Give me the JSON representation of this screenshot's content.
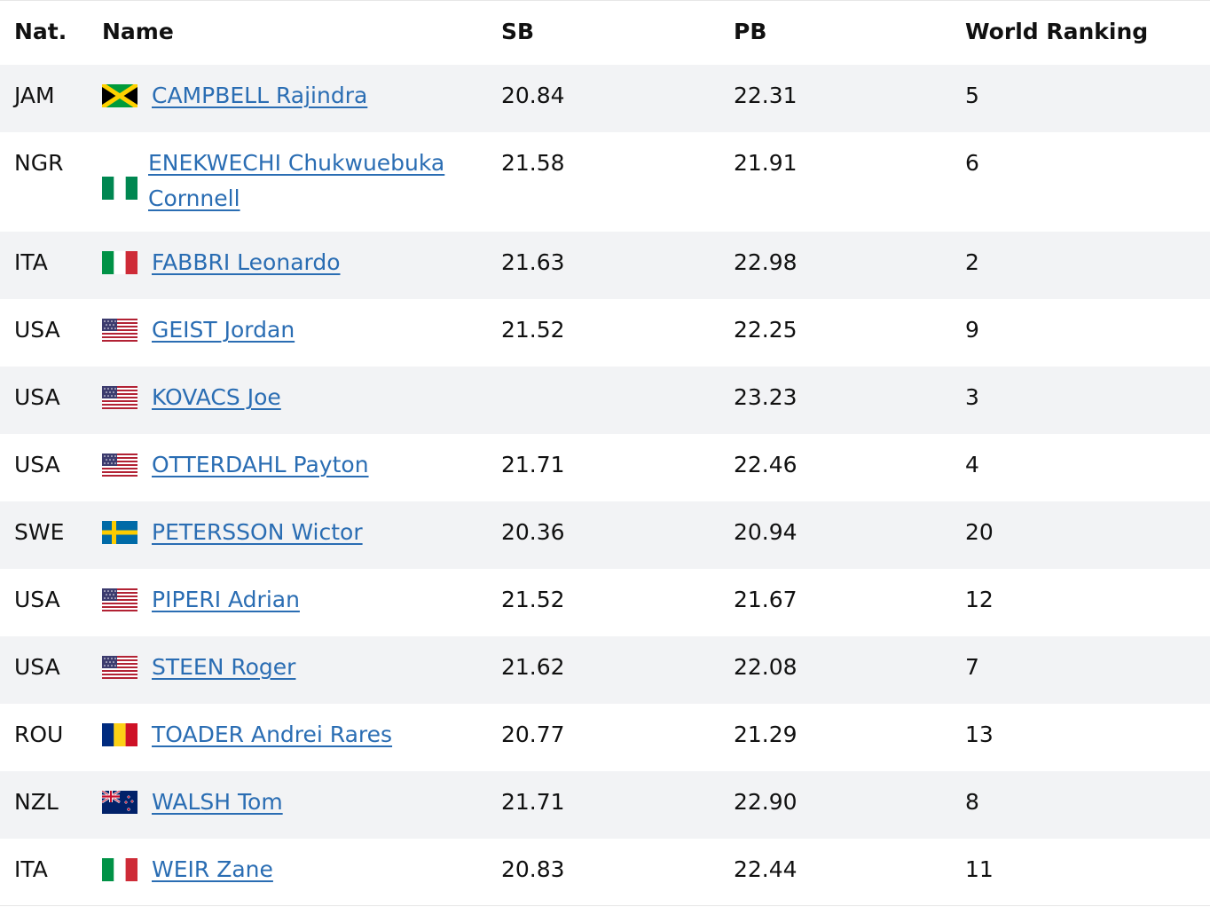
{
  "headers": {
    "nat": "Nat.",
    "name": "Name",
    "sb": "SB",
    "pb": "PB",
    "rank": "World Ranking"
  },
  "rows": [
    {
      "nat": "JAM",
      "flag": "jamaica-flag-icon",
      "name": "CAMPBELL Rajindra",
      "sb": "20.84",
      "pb": "22.31",
      "rank": "5"
    },
    {
      "nat": "NGR",
      "flag": "nigeria-flag-icon",
      "name": "ENEKWECHI Chukwuebuka Cornnell",
      "sb": "21.58",
      "pb": "21.91",
      "rank": "6"
    },
    {
      "nat": "ITA",
      "flag": "italy-flag-icon",
      "name": "FABBRI Leonardo",
      "sb": "21.63",
      "pb": "22.98",
      "rank": "2"
    },
    {
      "nat": "USA",
      "flag": "usa-flag-icon",
      "name": "GEIST Jordan",
      "sb": "21.52",
      "pb": "22.25",
      "rank": "9"
    },
    {
      "nat": "USA",
      "flag": "usa-flag-icon",
      "name": "KOVACS Joe",
      "sb": "",
      "pb": "23.23",
      "rank": "3"
    },
    {
      "nat": "USA",
      "flag": "usa-flag-icon",
      "name": "OTTERDAHL Payton",
      "sb": "21.71",
      "pb": "22.46",
      "rank": "4"
    },
    {
      "nat": "SWE",
      "flag": "sweden-flag-icon",
      "name": "PETERSSON Wictor",
      "sb": "20.36",
      "pb": "20.94",
      "rank": "20"
    },
    {
      "nat": "USA",
      "flag": "usa-flag-icon",
      "name": "PIPERI Adrian",
      "sb": "21.52",
      "pb": "21.67",
      "rank": "12"
    },
    {
      "nat": "USA",
      "flag": "usa-flag-icon",
      "name": "STEEN Roger",
      "sb": "21.62",
      "pb": "22.08",
      "rank": "7"
    },
    {
      "nat": "ROU",
      "flag": "romania-flag-icon",
      "name": "TOADER Andrei Rares",
      "sb": "20.77",
      "pb": "21.29",
      "rank": "13"
    },
    {
      "nat": "NZL",
      "flag": "new-zealand-flag-icon",
      "name": "WALSH Tom",
      "sb": "21.71",
      "pb": "22.90",
      "rank": "8"
    },
    {
      "nat": "ITA",
      "flag": "italy-flag-icon",
      "name": "WEIR Zane",
      "sb": "20.83",
      "pb": "22.44",
      "rank": "11"
    }
  ],
  "colors": {
    "link": "#2a6db3",
    "stripe": "#f2f3f5",
    "text": "#111111"
  }
}
